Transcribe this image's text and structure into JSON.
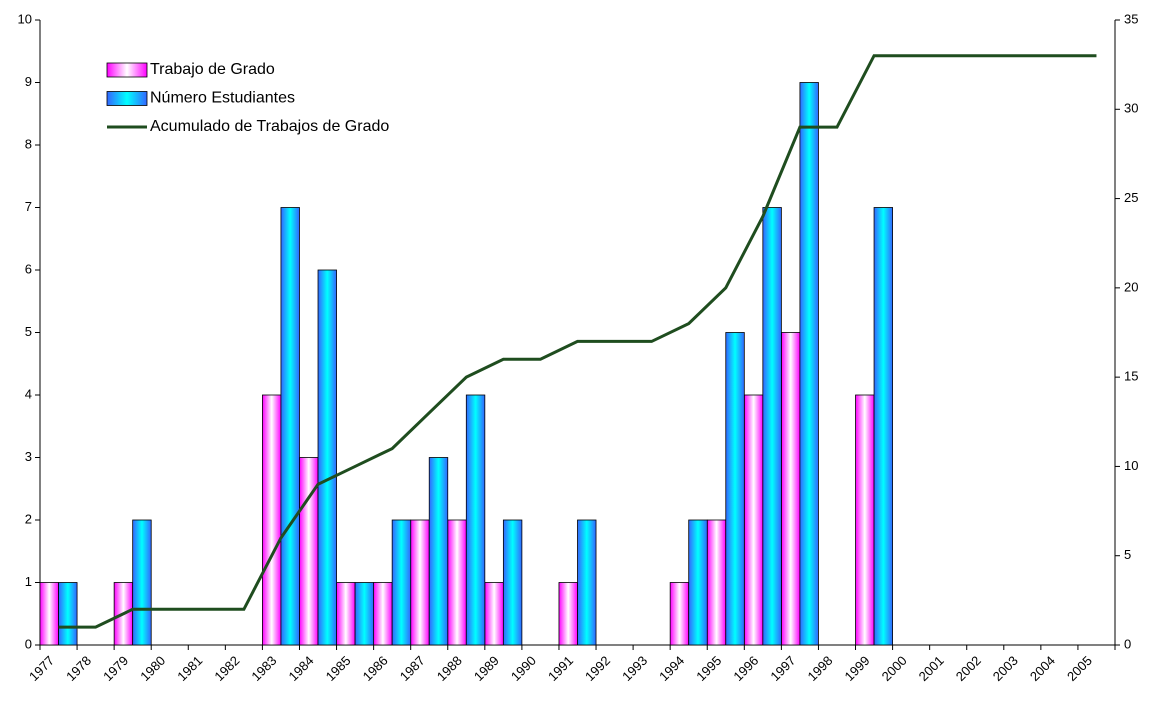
{
  "chart_data": {
    "type": "bar",
    "categories": [
      "1977",
      "1978",
      "1979",
      "1980",
      "1981",
      "1982",
      "1983",
      "1984",
      "1985",
      "1986",
      "1987",
      "1988",
      "1989",
      "1990",
      "1991",
      "1992",
      "1993",
      "1994",
      "1995",
      "1996",
      "1997",
      "1998",
      "1999",
      "2000",
      "2001",
      "2002",
      "2003",
      "2004",
      "2005"
    ],
    "series": [
      {
        "name": "Trabajo de Grado",
        "color": "#ff00ff",
        "values": [
          1,
          0,
          1,
          0,
          0,
          0,
          4,
          3,
          1,
          1,
          2,
          2,
          1,
          0,
          1,
          0,
          0,
          1,
          2,
          4,
          5,
          0,
          4,
          0,
          0,
          0,
          0,
          0,
          0
        ]
      },
      {
        "name": "Número Estudiantes",
        "color": "#3366ff",
        "values": [
          1,
          0,
          2,
          0,
          0,
          0,
          7,
          6,
          1,
          2,
          3,
          4,
          2,
          0,
          2,
          0,
          0,
          2,
          5,
          7,
          9,
          0,
          7,
          0,
          0,
          0,
          0,
          0,
          0
        ]
      },
      {
        "name": "Acumulado de Trabajos de Grado",
        "type": "line",
        "axis": "y2",
        "color": "#1f4d1f",
        "values": [
          1,
          1,
          2,
          2,
          2,
          2,
          6,
          9,
          10,
          11,
          13,
          15,
          16,
          16,
          17,
          17,
          17,
          18,
          20,
          24,
          29,
          29,
          33,
          33,
          33,
          33,
          33,
          33,
          33
        ]
      }
    ],
    "ylim": [
      0,
      10
    ],
    "yticks": [
      0,
      1,
      2,
      3,
      4,
      5,
      6,
      7,
      8,
      9,
      10
    ],
    "y2lim": [
      0,
      35
    ],
    "y2ticks": [
      0,
      5,
      10,
      15,
      20,
      25,
      30,
      35
    ],
    "legend": "upper left"
  }
}
